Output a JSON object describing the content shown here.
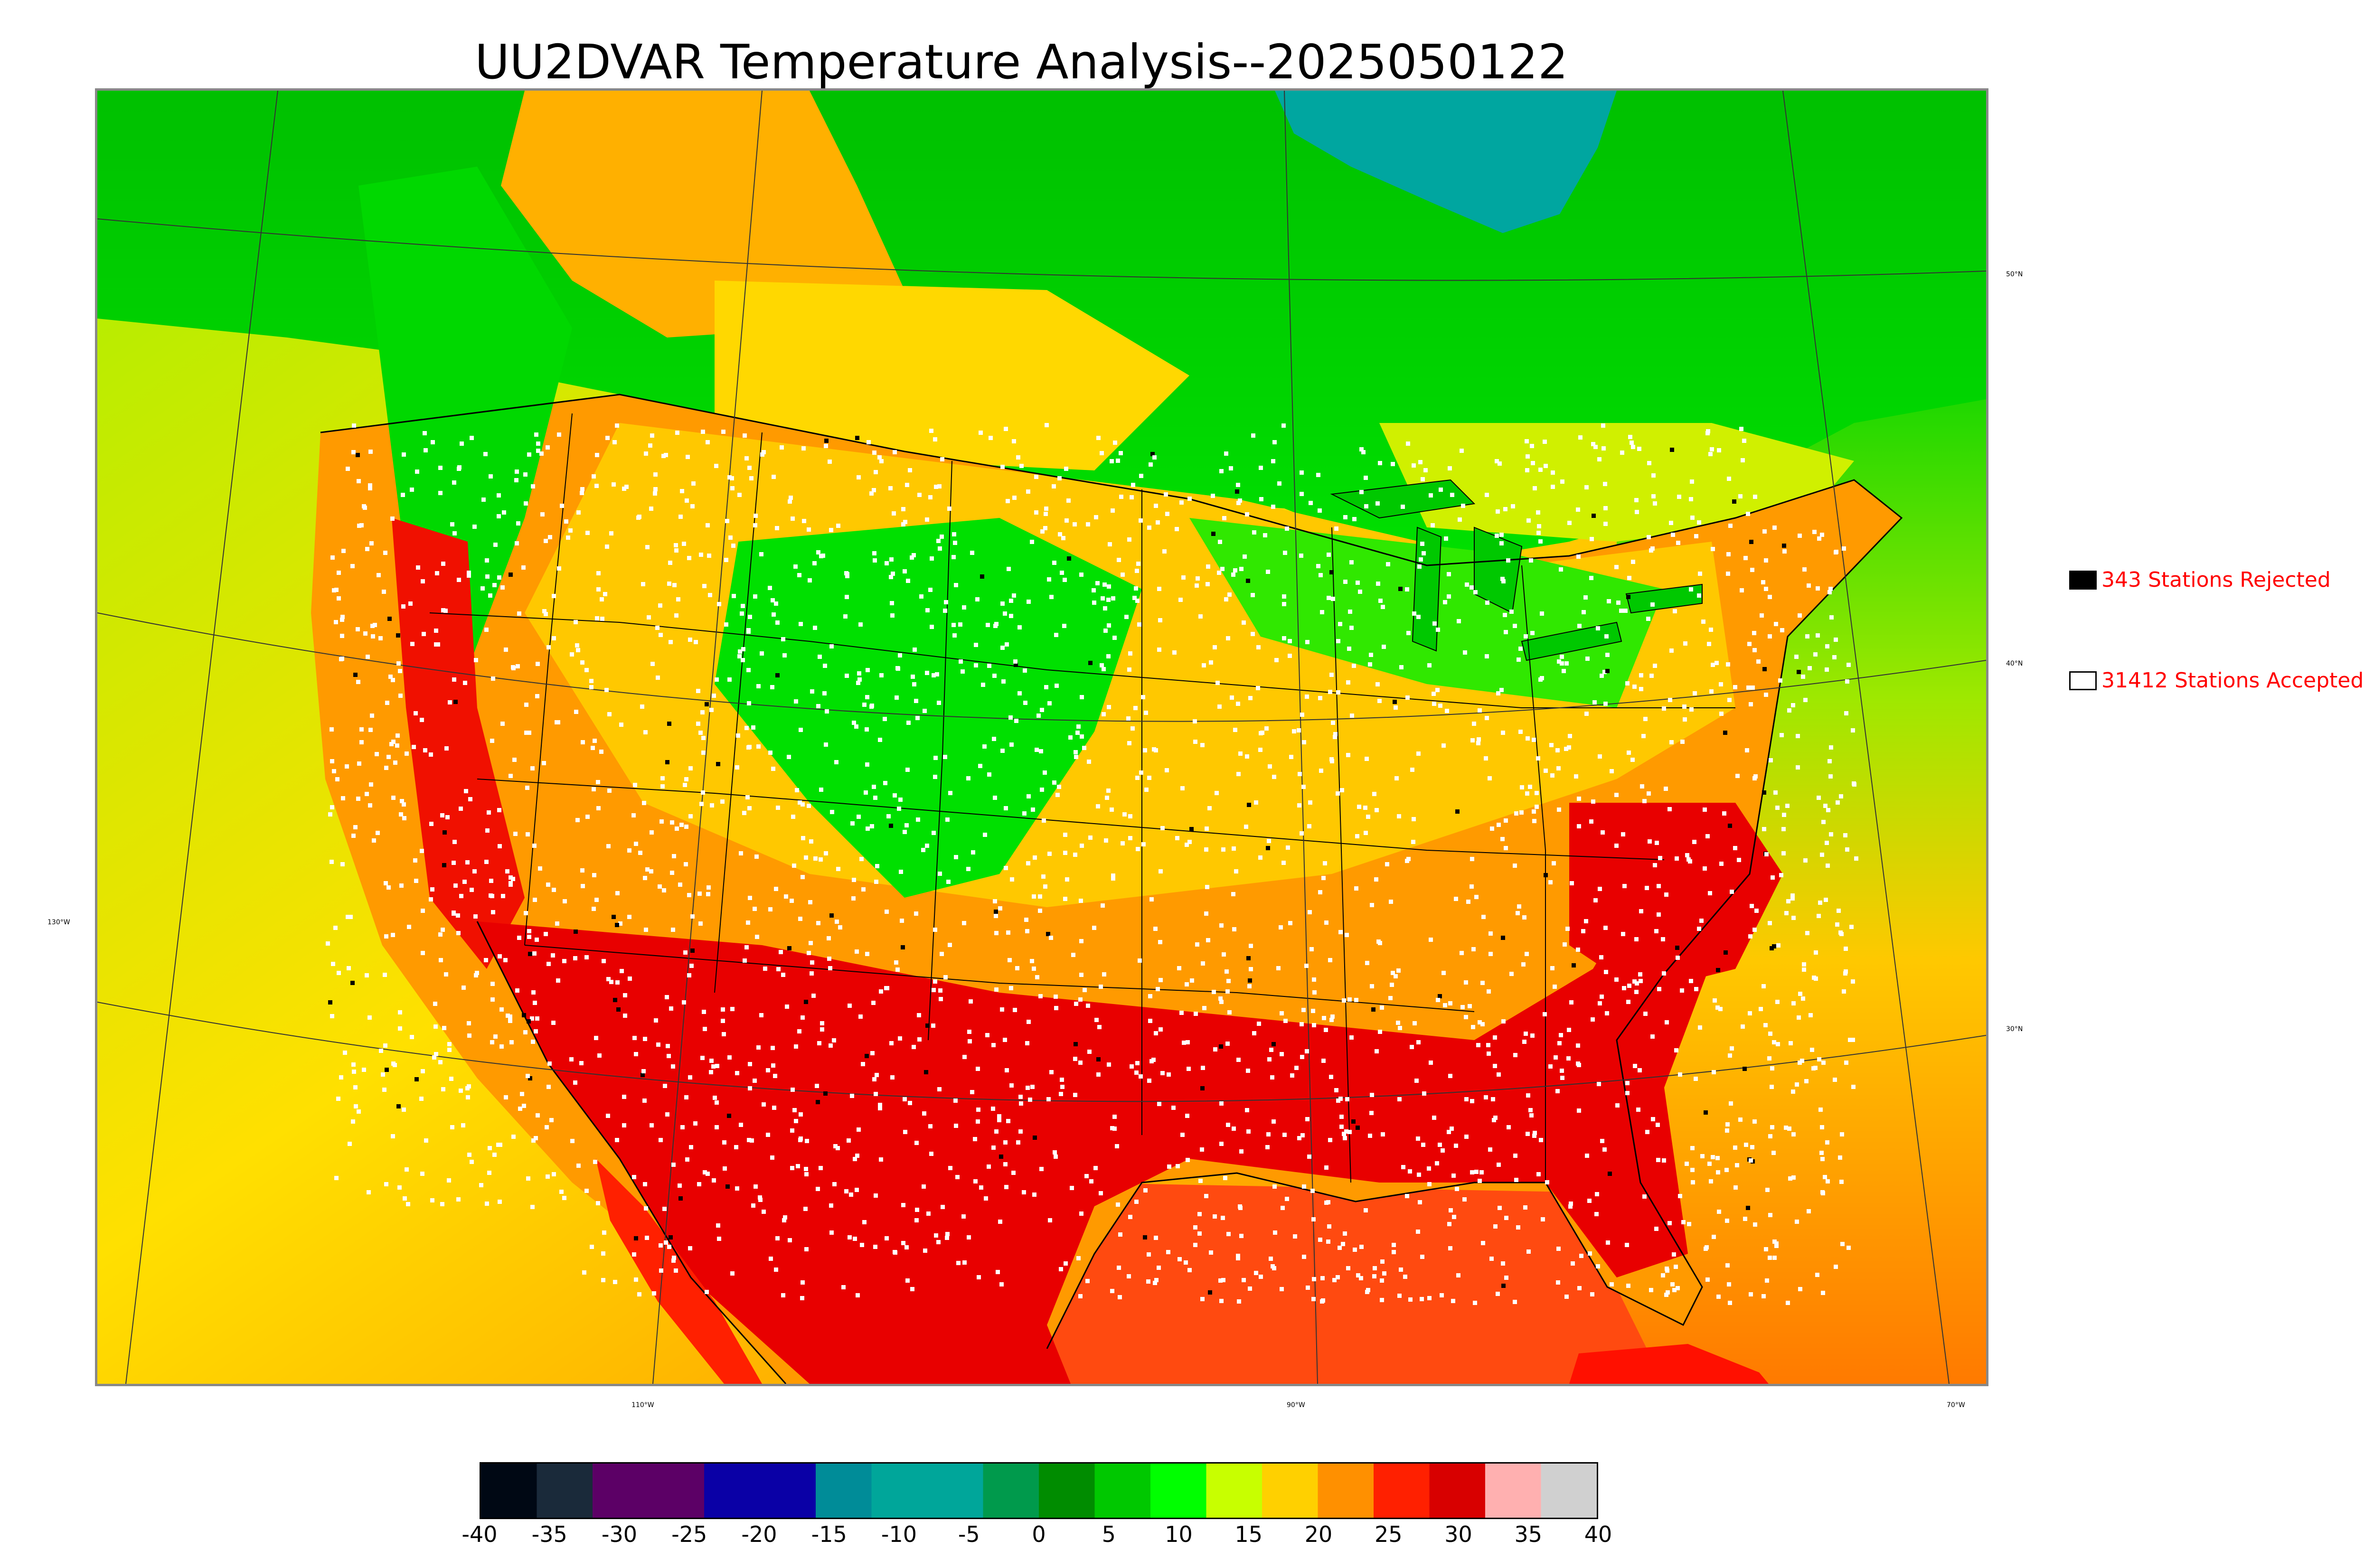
{
  "title": "UU2DVAR Temperature Analysis--2025050122",
  "legend": {
    "rejected_label": "343 Stations Rejected",
    "accepted_label": "31412 Stations Accepted",
    "rejected_color": "#000000",
    "accepted_color": "#ffffff",
    "text_color": "#ff0000"
  },
  "latitude_labels": [
    "50°N",
    "40°N",
    "30°N"
  ],
  "longitude_labels": [
    "130°W",
    "110°W",
    "90°W",
    "70°W"
  ],
  "colorbar": {
    "ticks": [
      "-40",
      "-35",
      "-30",
      "-25",
      "-20",
      "-15",
      "-10",
      "-5",
      "0",
      "5",
      "10",
      "15",
      "20",
      "25",
      "30",
      "35",
      "40"
    ],
    "range": [
      -40,
      40
    ],
    "colors": [
      "#000814",
      "#1a2a3a",
      "#5c0066",
      "#5c0066",
      "#0a00a6",
      "#0a00a6",
      "#008c98",
      "#00a69a",
      "#00a69a",
      "#009a4c",
      "#008c00",
      "#00c800",
      "#00ff00",
      "#c8ff00",
      "#ffd000",
      "#ff9000",
      "#ff2000",
      "#d80000",
      "#ffb0b0",
      "#d0d0d0"
    ]
  },
  "colors": {
    "ocean_cool": "#bfe800",
    "ocean_warm": "#ff9a00",
    "gulf": "#ff4a00",
    "hudson": "#00a6a0",
    "canada_green": "#00d000",
    "land_yellow": "#ffd000",
    "land_orange": "#ff9a00",
    "land_red": "#e80000",
    "land_green": "#00e000",
    "boundary": "#000000",
    "graticule": "#000000"
  }
}
